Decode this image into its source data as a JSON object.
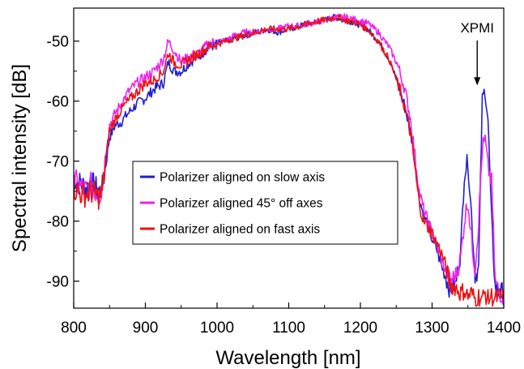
{
  "chart_data": {
    "type": "line",
    "xlabel": "Wavelength [nm]",
    "ylabel": "Spectral intensity [dB]",
    "xlim": [
      800,
      1400
    ],
    "ylim": [
      -94.5,
      -44.5
    ],
    "x_ticks": [
      800,
      900,
      1000,
      1100,
      1200,
      1300,
      1400
    ],
    "y_ticks": [
      -50,
      -60,
      -70,
      -80,
      -90
    ],
    "grid": false,
    "legend_position": "center-left",
    "annotations": [
      {
        "text": "XPMI",
        "x": 1372,
        "y": -57.5
      }
    ],
    "series": [
      {
        "name": "Polarizer aligned on slow axis",
        "color": "#1f1fd6",
        "points": [
          [
            800,
            -72.5
          ],
          [
            806,
            -73.5
          ],
          [
            812,
            -74
          ],
          [
            818,
            -74.5
          ],
          [
            824,
            -73.5
          ],
          [
            830,
            -74.5
          ],
          [
            836,
            -75
          ],
          [
            840,
            -74.5
          ],
          [
            845,
            -70.5
          ],
          [
            850,
            -66
          ],
          [
            858,
            -64
          ],
          [
            866,
            -63.5
          ],
          [
            876,
            -62
          ],
          [
            888,
            -60.5
          ],
          [
            900,
            -59.5
          ],
          [
            912,
            -58
          ],
          [
            925,
            -57
          ],
          [
            932,
            -53.5
          ],
          [
            940,
            -55
          ],
          [
            950,
            -55
          ],
          [
            962,
            -53.5
          ],
          [
            975,
            -52.5
          ],
          [
            988,
            -51
          ],
          [
            1000,
            -50.5
          ],
          [
            1012,
            -50
          ],
          [
            1025,
            -49.5
          ],
          [
            1040,
            -49
          ],
          [
            1055,
            -48.5
          ],
          [
            1070,
            -48
          ],
          [
            1085,
            -48.5
          ],
          [
            1100,
            -48
          ],
          [
            1115,
            -47.5
          ],
          [
            1130,
            -47
          ],
          [
            1150,
            -46.5
          ],
          [
            1165,
            -46
          ],
          [
            1180,
            -46.5
          ],
          [
            1195,
            -47
          ],
          [
            1210,
            -48
          ],
          [
            1225,
            -50
          ],
          [
            1240,
            -53
          ],
          [
            1252,
            -57
          ],
          [
            1262,
            -61
          ],
          [
            1270,
            -65
          ],
          [
            1276,
            -70
          ],
          [
            1282,
            -76
          ],
          [
            1288,
            -79
          ],
          [
            1294,
            -80.5
          ],
          [
            1300,
            -83
          ],
          [
            1306,
            -84.5
          ],
          [
            1312,
            -87
          ],
          [
            1318,
            -89
          ],
          [
            1325,
            -91.5
          ],
          [
            1333,
            -90.5
          ],
          [
            1340,
            -85
          ],
          [
            1345,
            -72
          ],
          [
            1350,
            -70
          ],
          [
            1355,
            -79
          ],
          [
            1360,
            -89
          ],
          [
            1365,
            -88
          ],
          [
            1370,
            -60
          ],
          [
            1374,
            -58
          ],
          [
            1378,
            -63
          ],
          [
            1383,
            -80
          ],
          [
            1388,
            -91
          ],
          [
            1394,
            -92
          ],
          [
            1400,
            -91.5
          ]
        ]
      },
      {
        "name": "Polarizer aligned 45° off axes",
        "color": "#ee22ee",
        "points": [
          [
            800,
            -73
          ],
          [
            806,
            -74
          ],
          [
            812,
            -74.5
          ],
          [
            818,
            -75
          ],
          [
            824,
            -74
          ],
          [
            830,
            -75
          ],
          [
            836,
            -75.5
          ],
          [
            840,
            -74.5
          ],
          [
            845,
            -68.5
          ],
          [
            850,
            -64
          ],
          [
            858,
            -62
          ],
          [
            866,
            -60.5
          ],
          [
            876,
            -58.5
          ],
          [
            888,
            -57
          ],
          [
            900,
            -56
          ],
          [
            912,
            -55
          ],
          [
            925,
            -53
          ],
          [
            932,
            -50
          ],
          [
            940,
            -51.5
          ],
          [
            950,
            -53.5
          ],
          [
            962,
            -52.5
          ],
          [
            975,
            -52
          ],
          [
            988,
            -50.5
          ],
          [
            1000,
            -50
          ],
          [
            1012,
            -50
          ],
          [
            1025,
            -49
          ],
          [
            1040,
            -48.5
          ],
          [
            1055,
            -48.5
          ],
          [
            1070,
            -48
          ],
          [
            1085,
            -48
          ],
          [
            1100,
            -47.5
          ],
          [
            1115,
            -47.5
          ],
          [
            1130,
            -47
          ],
          [
            1150,
            -46.5
          ],
          [
            1165,
            -46
          ],
          [
            1180,
            -46
          ],
          [
            1195,
            -46.5
          ],
          [
            1210,
            -47
          ],
          [
            1225,
            -48.5
          ],
          [
            1240,
            -51
          ],
          [
            1252,
            -54
          ],
          [
            1262,
            -58
          ],
          [
            1270,
            -63
          ],
          [
            1276,
            -69
          ],
          [
            1282,
            -75
          ],
          [
            1288,
            -78
          ],
          [
            1294,
            -80
          ],
          [
            1300,
            -82
          ],
          [
            1306,
            -84
          ],
          [
            1312,
            -86
          ],
          [
            1318,
            -88
          ],
          [
            1325,
            -90
          ],
          [
            1333,
            -89
          ],
          [
            1340,
            -86
          ],
          [
            1345,
            -80
          ],
          [
            1350,
            -76.5
          ],
          [
            1355,
            -83
          ],
          [
            1360,
            -88
          ],
          [
            1365,
            -80
          ],
          [
            1370,
            -68
          ],
          [
            1374,
            -66.5
          ],
          [
            1378,
            -71
          ],
          [
            1383,
            -73.5
          ],
          [
            1388,
            -90
          ],
          [
            1394,
            -92
          ],
          [
            1400,
            -92.5
          ]
        ]
      },
      {
        "name": "Polarizer aligned on fast axis",
        "color": "#ee1111",
        "points": [
          [
            800,
            -74.5
          ],
          [
            806,
            -75
          ],
          [
            812,
            -75.5
          ],
          [
            818,
            -75.5
          ],
          [
            824,
            -75
          ],
          [
            830,
            -75.5
          ],
          [
            836,
            -76
          ],
          [
            840,
            -75
          ],
          [
            845,
            -69.5
          ],
          [
            850,
            -65
          ],
          [
            858,
            -63
          ],
          [
            866,
            -61.5
          ],
          [
            876,
            -60
          ],
          [
            888,
            -58.5
          ],
          [
            900,
            -57
          ],
          [
            912,
            -56.5
          ],
          [
            925,
            -55
          ],
          [
            932,
            -52
          ],
          [
            940,
            -53.5
          ],
          [
            950,
            -54
          ],
          [
            962,
            -53
          ],
          [
            975,
            -52
          ],
          [
            988,
            -51
          ],
          [
            1000,
            -50.5
          ],
          [
            1012,
            -50
          ],
          [
            1025,
            -49.5
          ],
          [
            1040,
            -49
          ],
          [
            1055,
            -48.5
          ],
          [
            1070,
            -48
          ],
          [
            1085,
            -48
          ],
          [
            1100,
            -48
          ],
          [
            1115,
            -47.5
          ],
          [
            1130,
            -47
          ],
          [
            1150,
            -46.5
          ],
          [
            1165,
            -46
          ],
          [
            1180,
            -46.5
          ],
          [
            1195,
            -47
          ],
          [
            1210,
            -48
          ],
          [
            1225,
            -50
          ],
          [
            1240,
            -53
          ],
          [
            1252,
            -57
          ],
          [
            1262,
            -61
          ],
          [
            1270,
            -65.5
          ],
          [
            1276,
            -71
          ],
          [
            1282,
            -77
          ],
          [
            1288,
            -80
          ],
          [
            1294,
            -81
          ],
          [
            1300,
            -82
          ],
          [
            1306,
            -83.5
          ],
          [
            1312,
            -85
          ],
          [
            1318,
            -87
          ],
          [
            1325,
            -90.5
          ],
          [
            1333,
            -91
          ],
          [
            1340,
            -92
          ],
          [
            1345,
            -91.5
          ],
          [
            1350,
            -92.5
          ],
          [
            1355,
            -92
          ],
          [
            1360,
            -93
          ],
          [
            1365,
            -92.5
          ],
          [
            1370,
            -93
          ],
          [
            1374,
            -92
          ],
          [
            1378,
            -93
          ],
          [
            1383,
            -92.5
          ],
          [
            1388,
            -93
          ],
          [
            1394,
            -92.5
          ],
          [
            1400,
            -93
          ]
        ]
      }
    ]
  }
}
